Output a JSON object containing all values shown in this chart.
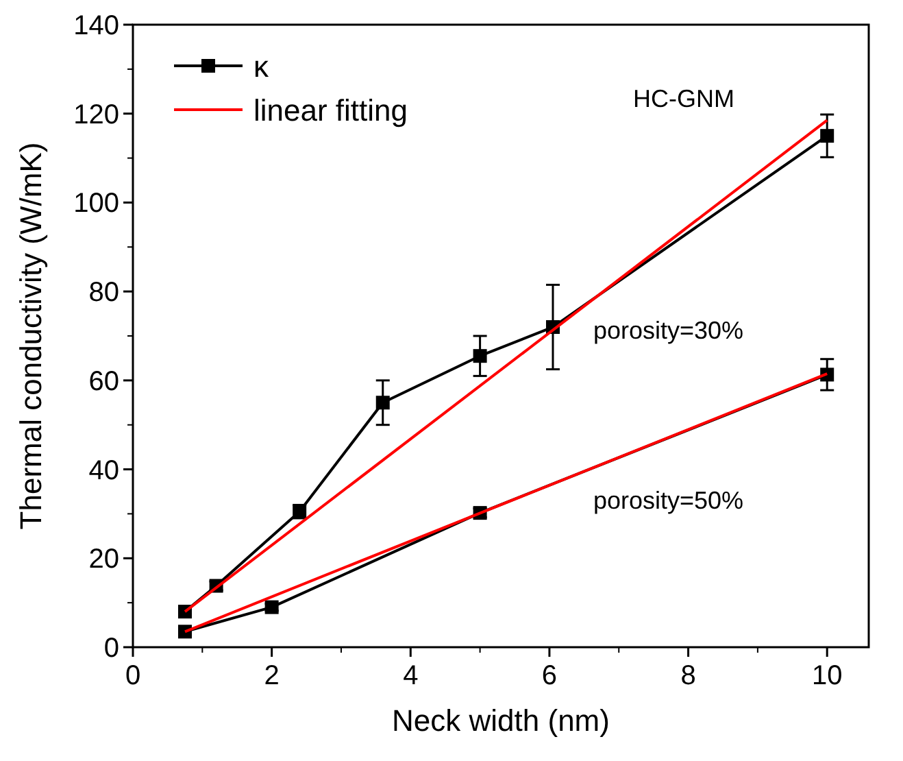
{
  "chart_data": {
    "type": "line",
    "xlabel": "Neck width (nm)",
    "ylabel": "Thermal conductivity (W/mK)",
    "xlim": [
      0,
      10.6
    ],
    "ylim": [
      0,
      140
    ],
    "xticks": [
      0,
      2,
      4,
      6,
      8,
      10
    ],
    "yticks": [
      0,
      20,
      40,
      60,
      80,
      100,
      120,
      140
    ],
    "grid": false,
    "legend": "top left",
    "line_style": "solid",
    "series": [
      {
        "name": "κ",
        "color": "#000000",
        "marker": "square",
        "x": [
          0.75,
          1.2,
          2.4,
          3.6,
          5,
          6.05,
          10
        ],
        "values": [
          8,
          13.8,
          30.5,
          55,
          65.5,
          72,
          115
        ],
        "errors": [
          1,
          1,
          1.5,
          5,
          4.5,
          9.5,
          4.8
        ]
      },
      {
        "color": "#000000",
        "marker": "square",
        "x": [
          0.75,
          2,
          5,
          10
        ],
        "values": [
          3.5,
          9,
          30.2,
          61.3
        ],
        "errors": [
          0.8,
          0.8,
          1,
          3.5
        ]
      },
      {
        "name": "linear fitting",
        "color": "#ff0000",
        "marker": "none",
        "x": [
          0.75,
          10
        ],
        "values": [
          8,
          118.5
        ]
      },
      {
        "color": "#ff0000",
        "marker": "none",
        "x": [
          0.75,
          10
        ],
        "values": [
          3.5,
          61.5
        ]
      }
    ],
    "annotations": [
      "HC-GNM",
      "porosity=30%",
      "porosity=50%"
    ]
  }
}
